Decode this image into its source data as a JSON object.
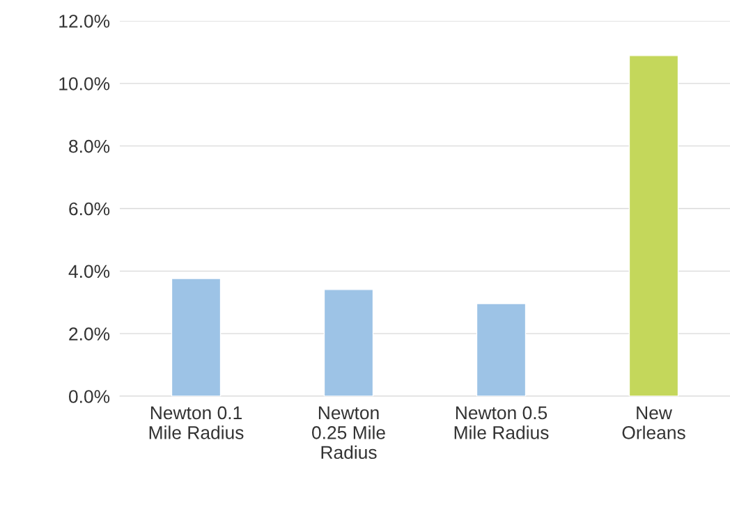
{
  "chart_data": {
    "type": "bar",
    "categories": [
      "Newton 0.1\nMile Radius",
      "Newton\n0.25 Mile\nRadius",
      "Newton 0.5\nMile Radius",
      "New\nOrleans"
    ],
    "values": [
      3.76,
      3.41,
      2.96,
      10.89
    ],
    "colors": [
      "#9dc3e6",
      "#9dc3e6",
      "#9dc3e6",
      "#c4d75b"
    ],
    "ylim": [
      0,
      12
    ],
    "yticks": [
      {
        "value": 0,
        "label": "0.0%"
      },
      {
        "value": 2,
        "label": "2.0%"
      },
      {
        "value": 4,
        "label": "4.0%"
      },
      {
        "value": 6,
        "label": "6.0%"
      },
      {
        "value": 8,
        "label": "8.0%"
      },
      {
        "value": 10,
        "label": "10.0%"
      },
      {
        "value": 12,
        "label": "12.0%"
      }
    ],
    "grid": "y",
    "legend": false
  }
}
